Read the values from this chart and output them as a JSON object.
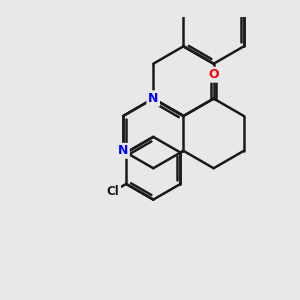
{
  "bg_color": "#e8e8e8",
  "bond_color": "#1a1a1a",
  "N_color": "#0000ff",
  "O_color": "#ff0000",
  "bond_width": 1.8,
  "figsize": [
    3.0,
    3.0
  ],
  "dpi": 100,
  "xlim": [
    0.5,
    9.5
  ],
  "ylim": [
    1.0,
    9.0
  ]
}
